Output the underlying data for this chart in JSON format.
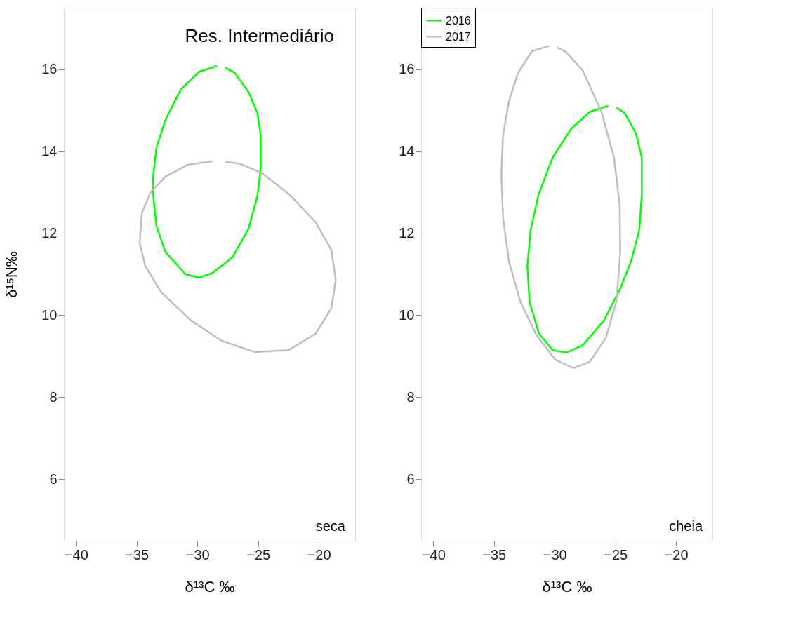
{
  "chart_data": [
    {
      "type": "line",
      "title": "Res. Intermediário",
      "xlabel": "δ¹³C ‰",
      "ylabel": "δ¹⁵N‰",
      "annotations": [
        "seca"
      ],
      "xlim": [
        -41,
        -17
      ],
      "ylim": [
        4.5,
        17.5
      ],
      "xticks": [
        -40,
        -35,
        -30,
        -25,
        -20
      ],
      "yticks": [
        6,
        8,
        10,
        12,
        14,
        16
      ],
      "grid": false,
      "legend": false,
      "marker": "none",
      "line_style": "solid",
      "series": [
        {
          "color": "#00ff00",
          "x": [
            -28.38,
            -29.86,
            -31.36,
            -32.63,
            -33.37,
            -33.65,
            -33.65,
            -33.37,
            -32.63,
            -30.97,
            -29.86,
            -28.75,
            -27.09,
            -25.8,
            -25.06,
            -24.78,
            -24.78,
            -25.06,
            -25.8,
            -26.91,
            -27.7
          ],
          "values": [
            16.08,
            15.94,
            15.51,
            14.77,
            14.09,
            13.36,
            12.96,
            12.17,
            11.54,
            11.0,
            10.92,
            11.03,
            11.42,
            12.1,
            12.9,
            13.58,
            14.38,
            14.94,
            15.45,
            15.91,
            16.04
          ]
        },
        {
          "color": "#bebebe",
          "x": [
            -28.75,
            -30.79,
            -32.63,
            -33.83,
            -34.57,
            -34.75,
            -34.29,
            -33.0,
            -30.6,
            -28.02,
            -25.25,
            -22.48,
            -20.26,
            -18.96,
            -18.6,
            -18.96,
            -20.26,
            -22.48,
            -24.69,
            -26.54,
            -27.7
          ],
          "values": [
            13.76,
            13.67,
            13.38,
            13.01,
            12.5,
            11.76,
            11.2,
            10.57,
            9.89,
            9.38,
            9.1,
            9.15,
            9.55,
            10.17,
            10.86,
            11.59,
            12.27,
            12.96,
            13.47,
            13.7,
            13.74
          ]
        }
      ]
    },
    {
      "type": "line",
      "xlabel": "δ¹³C ‰",
      "annotations": [
        "cheia"
      ],
      "xlim": [
        -41,
        -17
      ],
      "ylim": [
        4.5,
        17.5
      ],
      "xticks": [
        -40,
        -35,
        -30,
        -25,
        -20
      ],
      "yticks": [
        6,
        8,
        10,
        12,
        14,
        16
      ],
      "grid": false,
      "legend": "top left",
      "marker": "none",
      "line_style": "solid",
      "series": [
        {
          "name": "2016",
          "color": "#00ff00",
          "x": [
            -25.59,
            -27.11,
            -28.64,
            -30.16,
            -31.3,
            -31.97,
            -32.25,
            -32.07,
            -31.3,
            -30.16,
            -29.02,
            -27.68,
            -25.97,
            -24.64,
            -23.69,
            -23.02,
            -22.82,
            -22.82,
            -23.31,
            -24.25,
            -24.9
          ],
          "values": [
            15.11,
            14.96,
            14.55,
            13.85,
            12.97,
            12.09,
            11.21,
            10.33,
            9.56,
            9.15,
            9.09,
            9.27,
            9.86,
            10.62,
            11.33,
            12.09,
            12.97,
            13.85,
            14.44,
            14.94,
            15.06
          ]
        },
        {
          "name": "2017",
          "color": "#bebebe",
          "x": [
            -30.45,
            -31.87,
            -33.02,
            -33.78,
            -34.25,
            -34.39,
            -34.25,
            -33.78,
            -32.83,
            -31.49,
            -29.97,
            -28.45,
            -27.11,
            -25.78,
            -24.92,
            -24.6,
            -24.64,
            -25.11,
            -26.16,
            -27.69,
            -29.02,
            -29.8
          ],
          "values": [
            16.57,
            16.44,
            15.91,
            15.2,
            14.38,
            13.44,
            12.38,
            11.33,
            10.33,
            9.51,
            8.92,
            8.71,
            8.86,
            9.45,
            10.33,
            11.5,
            12.68,
            13.85,
            14.97,
            15.97,
            16.41,
            16.53
          ]
        }
      ]
    }
  ]
}
